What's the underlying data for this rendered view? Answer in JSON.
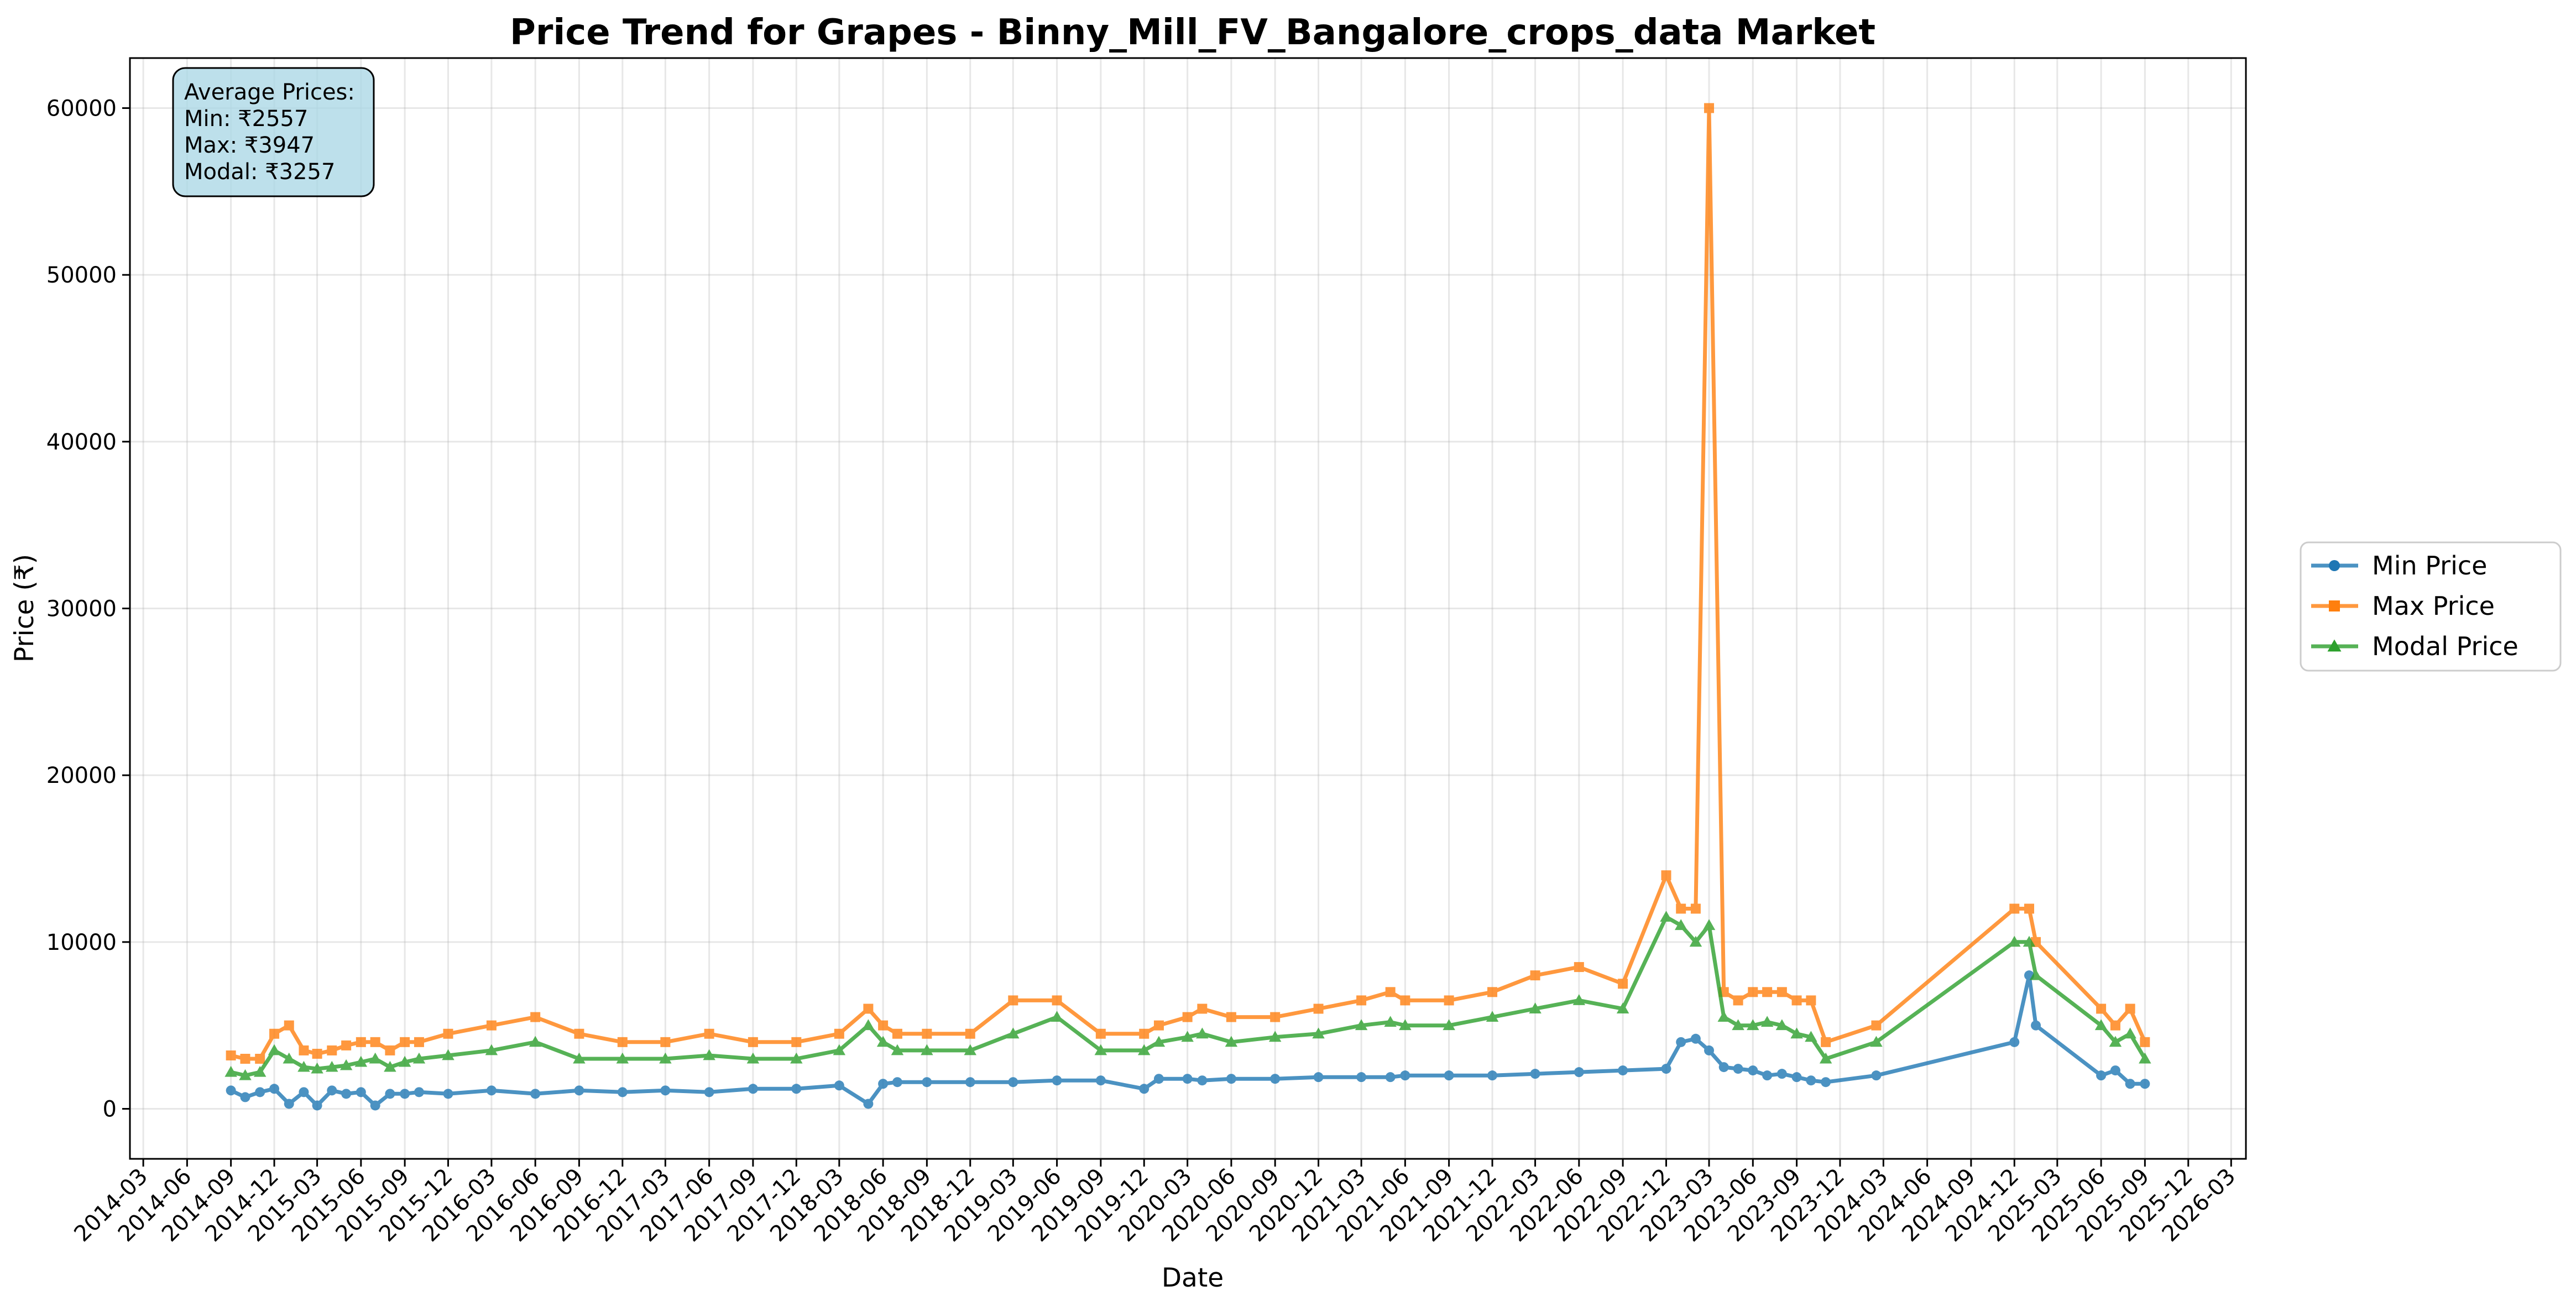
{
  "chart_data": {
    "type": "line",
    "title": "Price Trend for Grapes - Binny_Mill_FV_Bangalore_crops_data Market",
    "xlabel": "Date",
    "ylabel": "Price (₹)",
    "ylim": [
      -3000,
      63000
    ],
    "xlim": [
      "2014-02-01",
      "2026-04-01"
    ],
    "grid": true,
    "legend_position": "right-outside",
    "yticks": [
      0,
      10000,
      20000,
      30000,
      40000,
      50000,
      60000
    ],
    "xticks": [
      "2014-03",
      "2014-06",
      "2014-09",
      "2014-12",
      "2015-03",
      "2015-06",
      "2015-09",
      "2015-12",
      "2016-03",
      "2016-06",
      "2016-09",
      "2016-12",
      "2017-03",
      "2017-06",
      "2017-09",
      "2017-12",
      "2018-03",
      "2018-06",
      "2018-09",
      "2018-12",
      "2019-03",
      "2019-06",
      "2019-09",
      "2019-12",
      "2020-03",
      "2020-06",
      "2020-09",
      "2020-12",
      "2021-03",
      "2021-06",
      "2021-09",
      "2021-12",
      "2022-03",
      "2022-06",
      "2022-09",
      "2022-12",
      "2023-03",
      "2023-06",
      "2023-09",
      "2023-12",
      "2024-03",
      "2024-06",
      "2024-09",
      "2024-12",
      "2025-03",
      "2025-06",
      "2025-09",
      "2025-12",
      "2026-03"
    ],
    "annotation": {
      "lines": [
        "Average Prices:",
        "Min: ₹2557",
        "Max: ₹3947",
        "Modal: ₹3257"
      ]
    },
    "series": [
      {
        "name": "Min Price",
        "color": "#1f77b4",
        "marker": "circle",
        "x": [
          "2014-09-01",
          "2014-10-01",
          "2014-11-01",
          "2014-12-01",
          "2015-01-01",
          "2015-02-01",
          "2015-03-01",
          "2015-04-01",
          "2015-05-01",
          "2015-06-01",
          "2015-07-01",
          "2015-08-01",
          "2015-09-01",
          "2015-10-01",
          "2015-12-01",
          "2016-03-01",
          "2016-06-01",
          "2016-09-01",
          "2016-12-01",
          "2017-03-01",
          "2017-06-01",
          "2017-09-01",
          "2017-12-01",
          "2018-03-01",
          "2018-05-01",
          "2018-06-01",
          "2018-07-01",
          "2018-09-01",
          "2018-12-01",
          "2019-03-01",
          "2019-06-01",
          "2019-09-01",
          "2019-12-01",
          "2020-01-01",
          "2020-03-01",
          "2020-04-01",
          "2020-06-01",
          "2020-09-01",
          "2020-12-01",
          "2021-03-01",
          "2021-05-01",
          "2021-06-01",
          "2021-09-01",
          "2021-12-01",
          "2022-03-01",
          "2022-06-01",
          "2022-09-01",
          "2022-12-01",
          "2023-01-01",
          "2023-02-01",
          "2023-03-01",
          "2023-04-01",
          "2023-05-01",
          "2023-06-01",
          "2023-07-01",
          "2023-08-01",
          "2023-09-01",
          "2023-10-01",
          "2023-11-01",
          "2024-02-15",
          "2024-12-01",
          "2025-01-01",
          "2025-01-15",
          "2025-06-01",
          "2025-07-01",
          "2025-08-01",
          "2025-09-01"
        ],
        "y": [
          1100,
          700,
          1000,
          1200,
          300,
          1000,
          200,
          1100,
          900,
          1000,
          200,
          900,
          900,
          1000,
          900,
          1100,
          900,
          1100,
          1000,
          1100,
          1000,
          1200,
          1200,
          1400,
          300,
          1500,
          1600,
          1600,
          1600,
          1600,
          1700,
          1700,
          1200,
          1800,
          1800,
          1700,
          1800,
          1800,
          1900,
          1900,
          1900,
          2000,
          2000,
          2000,
          2100,
          2200,
          2300,
          2400,
          4000,
          4200,
          3500,
          2500,
          2400,
          2300,
          2000,
          2100,
          1900,
          1700,
          1600,
          2000,
          4000,
          8000,
          5000,
          2000,
          2300,
          1500,
          1500
        ]
      },
      {
        "name": "Max Price",
        "color": "#ff7f0e",
        "marker": "square",
        "x": [
          "2014-09-01",
          "2014-10-01",
          "2014-11-01",
          "2014-12-01",
          "2015-01-01",
          "2015-02-01",
          "2015-03-01",
          "2015-04-01",
          "2015-05-01",
          "2015-06-01",
          "2015-07-01",
          "2015-08-01",
          "2015-09-01",
          "2015-10-01",
          "2015-12-01",
          "2016-03-01",
          "2016-06-01",
          "2016-09-01",
          "2016-12-01",
          "2017-03-01",
          "2017-06-01",
          "2017-09-01",
          "2017-12-01",
          "2018-03-01",
          "2018-05-01",
          "2018-06-01",
          "2018-07-01",
          "2018-09-01",
          "2018-12-01",
          "2019-03-01",
          "2019-06-01",
          "2019-09-01",
          "2019-12-01",
          "2020-01-01",
          "2020-03-01",
          "2020-04-01",
          "2020-06-01",
          "2020-09-01",
          "2020-12-01",
          "2021-03-01",
          "2021-05-01",
          "2021-06-01",
          "2021-09-01",
          "2021-12-01",
          "2022-03-01",
          "2022-06-01",
          "2022-09-01",
          "2022-12-01",
          "2023-01-01",
          "2023-02-01",
          "2023-03-01",
          "2023-04-01",
          "2023-05-01",
          "2023-06-01",
          "2023-07-01",
          "2023-08-01",
          "2023-09-01",
          "2023-10-01",
          "2023-11-01",
          "2024-02-15",
          "2024-12-01",
          "2025-01-01",
          "2025-01-15",
          "2025-06-01",
          "2025-07-01",
          "2025-08-01",
          "2025-09-01"
        ],
        "y": [
          3200,
          3000,
          3000,
          4500,
          5000,
          3500,
          3300,
          3500,
          3800,
          4000,
          4000,
          3500,
          4000,
          4000,
          4500,
          5000,
          5500,
          4500,
          4000,
          4000,
          4500,
          4000,
          4000,
          4500,
          6000,
          5000,
          4500,
          4500,
          4500,
          6500,
          6500,
          4500,
          4500,
          5000,
          5500,
          6000,
          5500,
          5500,
          6000,
          6500,
          7000,
          6500,
          6500,
          7000,
          8000,
          8500,
          7500,
          14000,
          12000,
          12000,
          60000,
          7000,
          6500,
          7000,
          7000,
          7000,
          6500,
          6500,
          4000,
          5000,
          12000,
          12000,
          10000,
          6000,
          5000,
          6000,
          4000
        ]
      },
      {
        "name": "Modal Price",
        "color": "#2ca02c",
        "marker": "triangle",
        "x": [
          "2014-09-01",
          "2014-10-01",
          "2014-11-01",
          "2014-12-01",
          "2015-01-01",
          "2015-02-01",
          "2015-03-01",
          "2015-04-01",
          "2015-05-01",
          "2015-06-01",
          "2015-07-01",
          "2015-08-01",
          "2015-09-01",
          "2015-10-01",
          "2015-12-01",
          "2016-03-01",
          "2016-06-01",
          "2016-09-01",
          "2016-12-01",
          "2017-03-01",
          "2017-06-01",
          "2017-09-01",
          "2017-12-01",
          "2018-03-01",
          "2018-05-01",
          "2018-06-01",
          "2018-07-01",
          "2018-09-01",
          "2018-12-01",
          "2019-03-01",
          "2019-06-01",
          "2019-09-01",
          "2019-12-01",
          "2020-01-01",
          "2020-03-01",
          "2020-04-01",
          "2020-06-01",
          "2020-09-01",
          "2020-12-01",
          "2021-03-01",
          "2021-05-01",
          "2021-06-01",
          "2021-09-01",
          "2021-12-01",
          "2022-03-01",
          "2022-06-01",
          "2022-09-01",
          "2022-12-01",
          "2023-01-01",
          "2023-02-01",
          "2023-03-01",
          "2023-04-01",
          "2023-05-01",
          "2023-06-01",
          "2023-07-01",
          "2023-08-01",
          "2023-09-01",
          "2023-10-01",
          "2023-11-01",
          "2024-02-15",
          "2024-12-01",
          "2025-01-01",
          "2025-01-15",
          "2025-06-01",
          "2025-07-01",
          "2025-08-01",
          "2025-09-01"
        ],
        "y": [
          2200,
          2000,
          2200,
          3500,
          3000,
          2500,
          2400,
          2500,
          2600,
          2800,
          3000,
          2500,
          2800,
          3000,
          3200,
          3500,
          4000,
          3000,
          3000,
          3000,
          3200,
          3000,
          3000,
          3500,
          5000,
          4000,
          3500,
          3500,
          3500,
          4500,
          5500,
          3500,
          3500,
          4000,
          4300,
          4500,
          4000,
          4300,
          4500,
          5000,
          5200,
          5000,
          5000,
          5500,
          6000,
          6500,
          6000,
          11500,
          11000,
          10000,
          11000,
          5500,
          5000,
          5000,
          5200,
          5000,
          4500,
          4300,
          3000,
          4000,
          10000,
          10000,
          8000,
          5000,
          4000,
          4500,
          3000
        ]
      }
    ]
  }
}
